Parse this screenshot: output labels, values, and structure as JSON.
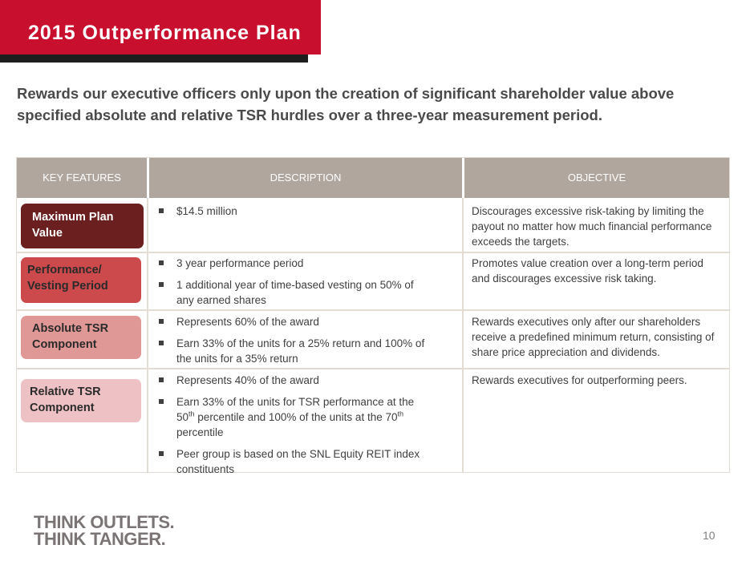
{
  "header": {
    "title": "2015 Outperformance Plan"
  },
  "subtitle": "Rewards our executive officers only upon the creation of significant shareholder value above specified absolute and relative TSR hurdles over a three-year measurement period.",
  "table": {
    "headers": [
      "KEY FEATURES",
      "DESCRIPTION",
      "OBJECTIVE"
    ],
    "rows": [
      {
        "feature_line1": "Maximum Plan",
        "feature_line2": "Value",
        "feature_color": "#6b1f1f",
        "bullets": [
          "$14.5 million"
        ],
        "objective": "Discourages excessive risk-taking by limiting the payout no matter how much financial performance exceeds the targets."
      },
      {
        "feature_line1": "Performance/",
        "feature_line2": "Vesting Period",
        "feature_color": "#cc4a4c",
        "bullets": [
          "3 year performance period",
          "1 additional year of time-based vesting on 50% of any earned shares"
        ],
        "objective": "Promotes value creation over a long-term period and discourages excessive risk taking."
      },
      {
        "feature_line1": "Absolute TSR",
        "feature_line2": "Component",
        "feature_color": "#e09897",
        "bullets": [
          "Represents 60% of the award",
          "Earn 33% of the units for a 25% return and 100% of the units for a 35% return"
        ],
        "objective": "Rewards executives only after our shareholders receive a predefined minimum return, consisting of share price appreciation and dividends."
      },
      {
        "feature_line1": "Relative TSR",
        "feature_line2": "Component",
        "feature_color": "#eec2c5",
        "bullets": [
          {
            "part1": "Earn 33% of the units for TSR performance at the 50",
            "sup1": "th",
            "part2": " percentile and 100% of the units at the 70",
            "sup2": "th",
            "part3": " percentile"
          },
          "Peer group is based on the SNL Equity REIT index constituents"
        ],
        "bullet_first": "Represents 40% of the award",
        "objective": "Rewards executives for outperforming peers."
      }
    ]
  },
  "footer": {
    "logo_line1": "THINK OUTLETS.",
    "logo_line2": "THINK TANGER.",
    "page_number": "10"
  },
  "colors": {
    "accent": "#c8102e",
    "header_bg": "#b0a69e"
  }
}
